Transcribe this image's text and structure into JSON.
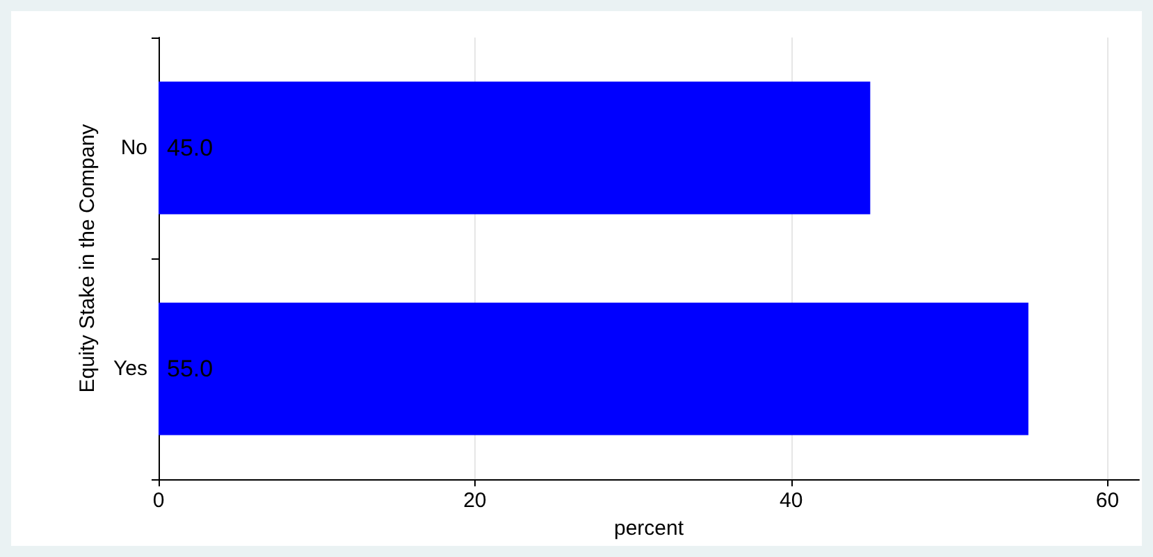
{
  "chart_data": {
    "type": "bar",
    "orientation": "horizontal",
    "categories": [
      "No",
      "Yes"
    ],
    "values": [
      45,
      55
    ],
    "value_labels": [
      "45.0",
      "55.0"
    ],
    "color": "#0000ff",
    "xlabel": "percent",
    "ylabel": "Equity Stake in the Company",
    "xlim": [
      0,
      62
    ],
    "xticks": [
      0,
      20,
      40,
      60
    ],
    "grid": "x"
  }
}
